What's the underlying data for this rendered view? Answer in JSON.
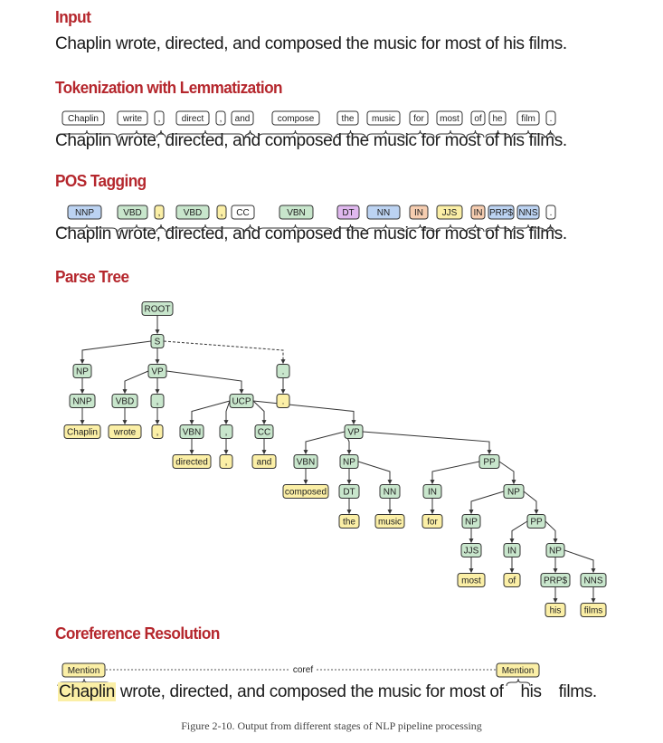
{
  "sections": {
    "input": {
      "title": "Input",
      "sentence": "Chaplin wrote, directed, and composed the music for most of his films."
    },
    "tokenization": {
      "title": "Tokenization with Lemmatization",
      "sentence": "Chaplin wrote, directed, and composed the music for most of his films.",
      "tokens": [
        "Chaplin",
        "write",
        ",",
        "direct",
        ",",
        "and",
        "compose",
        "the",
        "music",
        "for",
        "most",
        "of",
        "he",
        "film",
        "."
      ]
    },
    "pos": {
      "title": "POS Tagging",
      "sentence": "Chaplin wrote, directed, and composed the music for most of his films.",
      "tags": [
        "NNP",
        "VBD",
        ",",
        "VBD",
        ",",
        "CC",
        "VBN",
        "DT",
        "NN",
        "IN",
        "JJS",
        "IN",
        "PRP$",
        "NNS",
        "."
      ]
    },
    "parse": {
      "title": "Parse Tree",
      "nodes": [
        "ROOT",
        "S",
        "NP",
        "VP",
        ".",
        "NNP",
        "VBD",
        ",",
        "UCP",
        ".",
        "Chaplin",
        "wrote",
        ",",
        "VBN",
        ",",
        "CC",
        "VP",
        "directed",
        ",",
        "and",
        "VBN",
        "NP",
        "PP",
        "composed",
        "DT",
        "NN",
        "IN",
        "NP",
        "the",
        "music",
        "for",
        "NP",
        "PP",
        "JJS",
        "IN",
        "NP",
        "most",
        "of",
        "PRP$",
        "NNS",
        "his",
        "films"
      ]
    },
    "coref": {
      "title": "Coreference Resolution",
      "mention_label": "Mention",
      "link_label": "coref",
      "word_chaplin": "Chaplin",
      "sentence_mid": "wrote, directed, and composed the music for most of",
      "word_his": "his",
      "word_films": "films."
    }
  },
  "caption": "Figure 2-10. Output from different stages of NLP pipeline processing",
  "colors": {
    "title_red": "#b5272d",
    "token_fill": "#ffffff",
    "green": "#c8e6cc",
    "yellow": "#fbefa6",
    "blue": "#bcd3f2",
    "purple": "#e0b8ef",
    "orange": "#f6cdb0",
    "stroke": "#333333"
  }
}
